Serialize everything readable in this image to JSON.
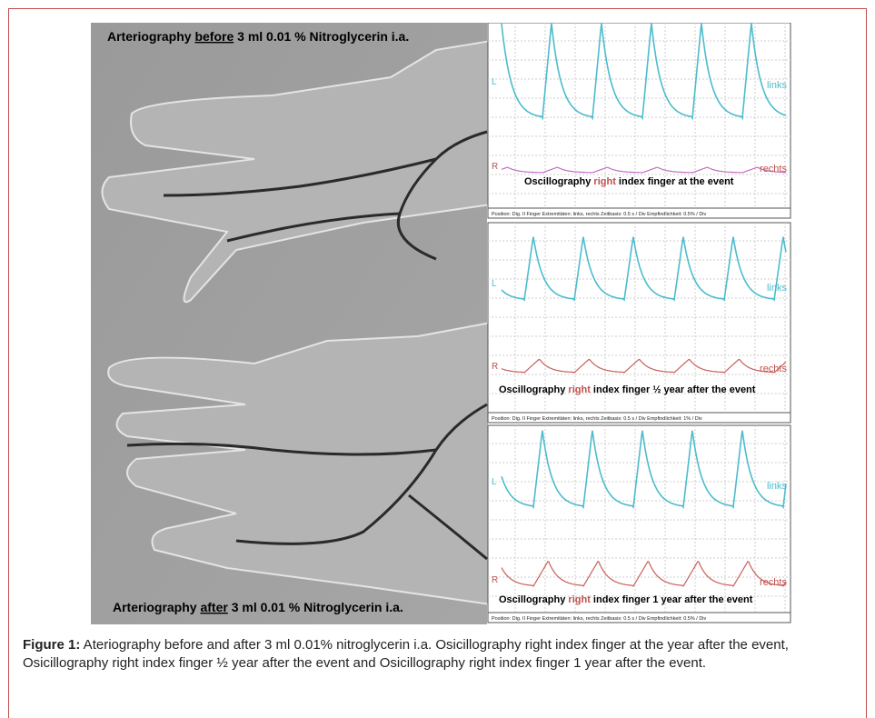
{
  "figure": {
    "angiography": {
      "top_label": [
        "Arteriography ",
        "before",
        " 3 ml 0.01 % Nitroglycerin i.a."
      ],
      "bottom_label": [
        "Arteriography ",
        "after",
        " 3 ml 0.01 % Nitroglycerin i.a."
      ]
    },
    "panels": [
      {
        "left_label": "L",
        "right_label": "R",
        "upper_trace": "links",
        "lower_trace": "rechts",
        "title": [
          "Oscillography ",
          "right",
          " index finger at the event"
        ],
        "footer": "Position: Dig. II Finger    Extremitäten: links, rechts    Zeitbasis: 0.5 s / Div    Empfindlichkeit: 0.5% / Div"
      },
      {
        "left_label": "L",
        "right_label": "R",
        "upper_trace": "links",
        "lower_trace": "rechts",
        "title": [
          "Oscillography ",
          "right",
          " index finger ½ year after the event"
        ],
        "footer": "Position: Dig. II Finger    Extremitäten: links, rechts    Zeitbasis: 0.5 s / Div    Empfindlichkeit: 1% / Div"
      },
      {
        "left_label": "L",
        "right_label": "R",
        "upper_trace": "links",
        "lower_trace": "rechts",
        "title": [
          "Oscillography ",
          "right",
          " index finger 1 year after the event"
        ],
        "footer": "Position: Dig. II Finger    Extremitäten: links, rechts    Zeitbasis: 0.5 s / Div    Empfindlichkeit: 0.5% / Div"
      }
    ],
    "caption": {
      "label": "Figure 1:",
      "text": " Ateriography before and after 3 ml 0.01% nitroglycerin i.a. Osicillography right index finger at the year after the event, Osicillography right index finger ½ year after the event and Osicillography right index finger 1 year after the event."
    }
  }
}
